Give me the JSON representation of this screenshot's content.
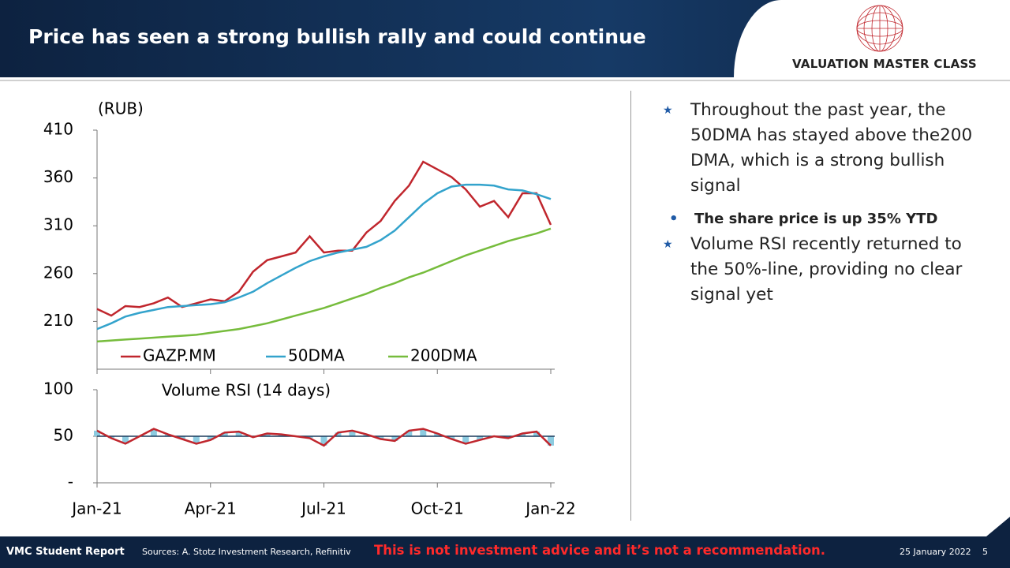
{
  "header": {
    "title": "Price has seen a strong bullish rally and could continue",
    "logo": "VALUATION MASTER CLASS"
  },
  "chart_data": [
    {
      "type": "line",
      "y_label": "(RUB)",
      "ylim": [
        160,
        410
      ],
      "yticks": [
        210,
        260,
        310,
        360,
        410
      ],
      "series": [
        {
          "name": "GAZP.MM",
          "color": "#c0262d",
          "values": [
            223,
            216,
            226,
            225,
            229,
            235,
            225,
            229,
            233,
            231,
            241,
            262,
            274,
            278,
            282,
            299,
            282,
            284,
            284,
            303,
            315,
            336,
            352,
            377,
            369,
            361,
            348,
            330,
            336,
            319,
            344,
            344,
            311
          ]
        },
        {
          "name": "50DMA",
          "color": "#33a3cc",
          "values": [
            202,
            208,
            215,
            219,
            222,
            225,
            226,
            227,
            228,
            230,
            235,
            241,
            250,
            258,
            266,
            273,
            278,
            282,
            285,
            288,
            295,
            305,
            319,
            333,
            344,
            351,
            353,
            353,
            352,
            348,
            347,
            343,
            338
          ]
        },
        {
          "name": "200DMA",
          "color": "#76bc3c",
          "values": [
            189,
            190,
            191,
            192,
            193,
            194,
            195,
            196,
            198,
            200,
            202,
            205,
            208,
            212,
            216,
            220,
            224,
            229,
            234,
            239,
            245,
            250,
            256,
            261,
            267,
            273,
            279,
            284,
            289,
            294,
            298,
            302,
            307
          ]
        }
      ]
    },
    {
      "type": "line",
      "title": "Volume RSI (14 days)",
      "categories": [
        "Jan-21",
        null,
        null,
        null,
        null,
        null,
        null,
        null,
        "Apr-21",
        null,
        null,
        null,
        null,
        null,
        null,
        null,
        "Jul-21",
        null,
        null,
        null,
        null,
        null,
        null,
        null,
        "Oct-21",
        null,
        null,
        null,
        null,
        null,
        null,
        null,
        "Jan-22"
      ],
      "ylim": [
        0,
        100
      ],
      "yticks": [
        {
          "value": 0,
          "label": "-"
        },
        50,
        100
      ],
      "baseline": 50,
      "series": [
        {
          "color": "#c0262d",
          "bar_color": "#8ccbe0",
          "values": [
            56,
            48,
            42,
            50,
            58,
            52,
            47,
            42,
            46,
            54,
            55,
            49,
            53,
            52,
            50,
            48,
            40,
            54,
            56,
            52,
            47,
            45,
            56,
            58,
            53,
            47,
            42,
            46,
            50,
            48,
            53,
            55,
            40
          ]
        }
      ]
    }
  ],
  "bullets": [
    {
      "text": "Throughout the past year, the 50DMA has stayed above the200 DMA, which is a strong bullish signal",
      "sub": [
        "The share price is up 35% YTD"
      ]
    },
    {
      "text": "Volume RSI recently returned to the 50%-line, providing no clear signal yet",
      "sub": []
    }
  ],
  "footer": {
    "report": "VMC Student Report",
    "sources": "Sources: A. Stotz Investment Research, Refinitiv",
    "disclaimer": "This is not investment advice and it’s not a recommendation.",
    "date": "25 January 2022",
    "page": "5"
  }
}
